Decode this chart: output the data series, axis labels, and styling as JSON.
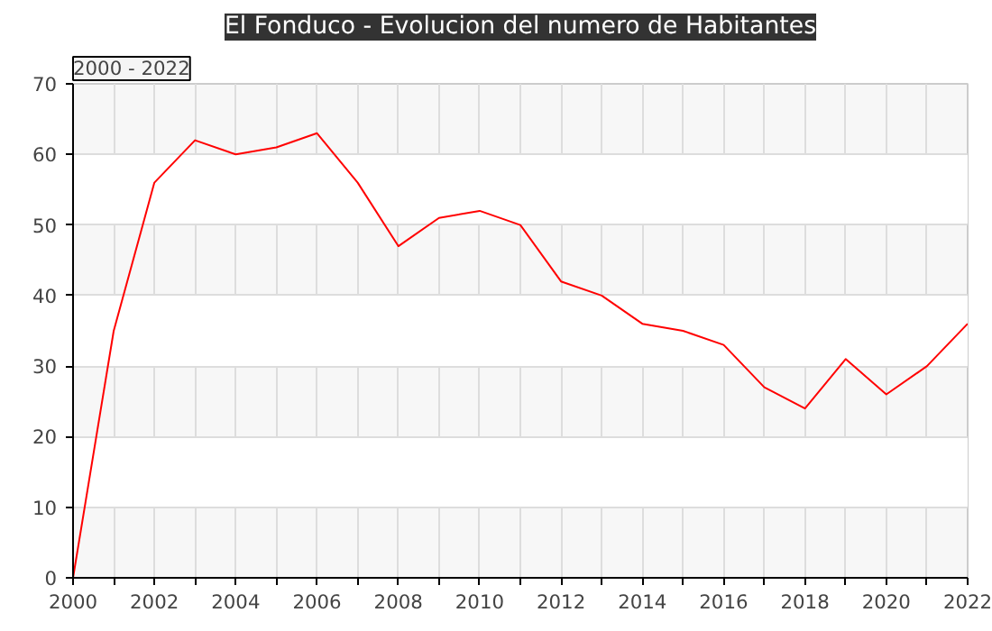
{
  "chart_data": {
    "type": "line",
    "title": "El Fonduco - Evolucion del numero de Habitantes",
    "annotations": [
      "2000 - 2022"
    ],
    "x": [
      2000,
      2001,
      2002,
      2003,
      2004,
      2005,
      2006,
      2007,
      2008,
      2009,
      2010,
      2011,
      2012,
      2013,
      2014,
      2015,
      2016,
      2017,
      2018,
      2019,
      2020,
      2021,
      2022
    ],
    "series": [
      {
        "color": "#ff0000",
        "values": [
          0,
          35,
          56,
          62,
          60,
          61,
          63,
          56,
          47,
          51,
          52,
          50,
          42,
          40,
          36,
          35,
          33,
          27,
          24,
          31,
          26,
          30,
          36
        ]
      }
    ],
    "xlim": [
      2000,
      2022
    ],
    "ylim": [
      0,
      70
    ],
    "xticks": [
      2000,
      {
        "value": 2001,
        "label": null
      },
      2002,
      {
        "value": 2003,
        "label": null
      },
      2004,
      {
        "value": 2005,
        "label": null
      },
      2006,
      {
        "value": 2007,
        "label": null
      },
      2008,
      {
        "value": 2009,
        "label": null
      },
      2010,
      {
        "value": 2011,
        "label": null
      },
      2012,
      {
        "value": 2013,
        "label": null
      },
      2014,
      {
        "value": 2015,
        "label": null
      },
      2016,
      {
        "value": 2017,
        "label": null
      },
      2018,
      {
        "value": 2019,
        "label": null
      },
      2020,
      {
        "value": 2021,
        "label": null
      },
      2022
    ],
    "yticks": [
      0,
      10,
      20,
      30,
      40,
      50,
      60,
      70
    ],
    "grid": true,
    "marker": "none",
    "line_style": "solid"
  }
}
